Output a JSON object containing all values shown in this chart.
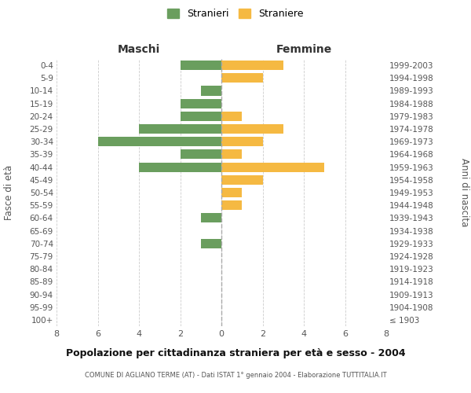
{
  "age_groups": [
    "100+",
    "95-99",
    "90-94",
    "85-89",
    "80-84",
    "75-79",
    "70-74",
    "65-69",
    "60-64",
    "55-59",
    "50-54",
    "45-49",
    "40-44",
    "35-39",
    "30-34",
    "25-29",
    "20-24",
    "15-19",
    "10-14",
    "5-9",
    "0-4"
  ],
  "birth_years": [
    "≤ 1903",
    "1904-1908",
    "1909-1913",
    "1914-1918",
    "1919-1923",
    "1924-1928",
    "1929-1933",
    "1934-1938",
    "1939-1943",
    "1944-1948",
    "1949-1953",
    "1954-1958",
    "1959-1963",
    "1964-1968",
    "1969-1973",
    "1974-1978",
    "1979-1983",
    "1984-1988",
    "1989-1993",
    "1994-1998",
    "1999-2003"
  ],
  "males": [
    0,
    0,
    0,
    0,
    0,
    0,
    1,
    0,
    1,
    0,
    0,
    0,
    4,
    2,
    6,
    4,
    2,
    2,
    1,
    0,
    2
  ],
  "females": [
    0,
    0,
    0,
    0,
    0,
    0,
    0,
    0,
    0,
    1,
    1,
    2,
    5,
    1,
    2,
    3,
    1,
    0,
    0,
    2,
    3
  ],
  "male_color": "#6a9e5e",
  "female_color": "#f5b942",
  "male_label": "Stranieri",
  "female_label": "Straniere",
  "title": "Popolazione per cittadinanza straniera per età e sesso - 2004",
  "subtitle": "COMUNE DI AGLIANO TERME (AT) - Dati ISTAT 1° gennaio 2004 - Elaborazione TUTTITALIA.IT",
  "xlabel_left": "Maschi",
  "xlabel_right": "Femmine",
  "ylabel_left": "Fasce di età",
  "ylabel_right": "Anni di nascita",
  "xlim": 8,
  "bg_color": "#ffffff",
  "grid_color": "#cccccc",
  "bar_height": 0.75
}
